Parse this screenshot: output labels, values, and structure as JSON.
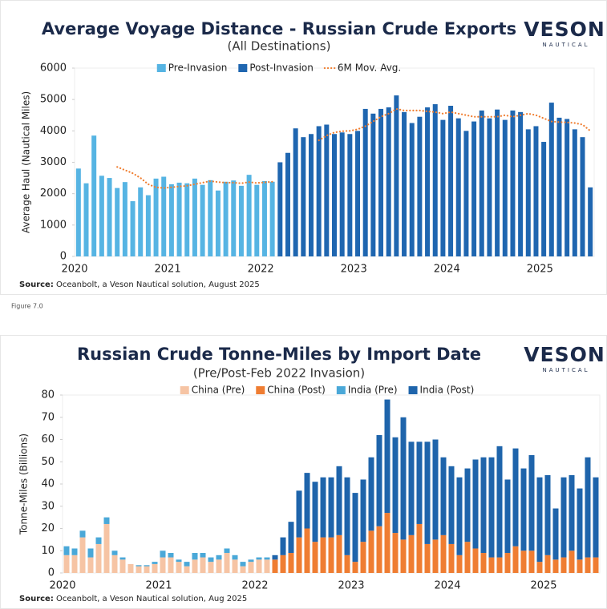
{
  "figure_caption": "Figure 7.0",
  "chart_data": [
    {
      "type": "bar",
      "title": "Average Voyage Distance - Russian Crude Exports",
      "subtitle": "(All Destinations)",
      "y_label": "Average Haul (Nautical Miles)",
      "logo": "VESON",
      "logo_sub": "NAUTICAL",
      "source_label": "Source:",
      "source": " Oceanbolt, a Veson Nautical solution, August 2025",
      "categories": [
        "2020",
        null,
        null,
        null,
        null,
        null,
        null,
        null,
        null,
        null,
        null,
        null,
        "2021",
        null,
        null,
        null,
        null,
        null,
        null,
        null,
        null,
        null,
        null,
        null,
        "2022",
        null,
        null,
        null,
        null,
        null,
        null,
        null,
        null,
        null,
        null,
        null,
        "2023",
        null,
        null,
        null,
        null,
        null,
        null,
        null,
        null,
        null,
        null,
        null,
        "2024",
        null,
        null,
        null,
        null,
        null,
        null,
        null,
        null,
        null,
        null,
        null,
        "2025",
        null,
        null,
        null,
        null,
        null,
        null
      ],
      "ylim": [
        0,
        6000
      ],
      "yticks": [
        0,
        1000,
        2000,
        3000,
        4000,
        5000,
        6000
      ],
      "grid": false,
      "series": [
        {
          "name": "Pre-Invasion",
          "color": "#56b4e3",
          "type": "bar",
          "values": [
            2800,
            2330,
            3850,
            2570,
            2500,
            2180,
            2370,
            1760,
            2200,
            1950,
            2480,
            2540,
            2300,
            2350,
            2330,
            2480,
            2280,
            2430,
            2100,
            2380,
            2420,
            2250,
            2600,
            2280,
            2400,
            2380,
            null,
            null,
            null,
            null,
            null,
            null,
            null,
            null,
            null,
            null,
            null,
            null,
            null,
            null,
            null,
            null,
            null,
            null,
            null,
            null,
            null,
            null,
            null,
            null,
            null,
            null,
            null,
            null,
            null,
            null,
            null,
            null,
            null,
            null,
            null,
            null,
            null,
            null,
            null,
            null,
            null
          ]
        },
        {
          "name": "Post-Invasion",
          "color": "#1f66b0",
          "type": "bar",
          "values": [
            null,
            null,
            null,
            null,
            null,
            null,
            null,
            null,
            null,
            null,
            null,
            null,
            null,
            null,
            null,
            null,
            null,
            null,
            null,
            null,
            null,
            null,
            null,
            null,
            null,
            null,
            3000,
            3300,
            4080,
            3800,
            3900,
            4150,
            4200,
            3900,
            3950,
            3900,
            4000,
            4700,
            4550,
            4700,
            4750,
            5130,
            4600,
            4250,
            4450,
            4750,
            4850,
            4350,
            4800,
            4400,
            4000,
            4300,
            4650,
            4400,
            4680,
            4350,
            4650,
            4600,
            4050,
            4150,
            3650,
            4900,
            4420,
            4380,
            4050,
            3800,
            2200
          ]
        },
        {
          "name": "6M Mov. Avg.",
          "color": "#f07f32",
          "type": "line",
          "values": [
            null,
            null,
            null,
            null,
            null,
            2850,
            2750,
            2650,
            2500,
            2300,
            2200,
            2180,
            2200,
            2230,
            2250,
            2300,
            2350,
            2400,
            2370,
            2350,
            2350,
            2330,
            2370,
            2340,
            2360,
            2380,
            null,
            null,
            null,
            null,
            null,
            3700,
            3850,
            3950,
            3990,
            4000,
            4050,
            4150,
            4300,
            4450,
            4550,
            4700,
            4650,
            4650,
            4650,
            4620,
            4600,
            4550,
            4600,
            4550,
            4500,
            4450,
            4450,
            4450,
            4450,
            4500,
            4450,
            4500,
            4550,
            4500,
            4400,
            4300,
            4280,
            4270,
            4250,
            4200,
            4000
          ]
        }
      ]
    },
    {
      "type": "stacked_bar",
      "title": "Russian Crude Tonne-Miles by Import Date",
      "subtitle": "(Pre/Post-Feb 2022 Invasion)",
      "y_label": "Tonne-Miles (Billions)",
      "logo": "VESON",
      "logo_sub": "NAUTICAL",
      "source_label": "Source:",
      "source": " Oceanbolt, a Veson Nautical solution, Aug 2025",
      "categories": [
        "2020",
        null,
        null,
        null,
        null,
        null,
        null,
        null,
        null,
        null,
        null,
        null,
        "2021",
        null,
        null,
        null,
        null,
        null,
        null,
        null,
        null,
        null,
        null,
        null,
        "2022",
        null,
        null,
        null,
        null,
        null,
        null,
        null,
        null,
        null,
        null,
        null,
        "2023",
        null,
        null,
        null,
        null,
        null,
        null,
        null,
        null,
        null,
        null,
        null,
        "2024",
        null,
        null,
        null,
        null,
        null,
        null,
        null,
        null,
        null,
        null,
        null,
        "2025",
        null,
        null,
        null,
        null,
        null,
        null
      ],
      "ylim": [
        0,
        80
      ],
      "yticks": [
        0,
        10,
        20,
        30,
        40,
        50,
        60,
        70,
        80
      ],
      "grid": false,
      "series": [
        {
          "name": "China (Pre)",
          "color": "#f6c4a4",
          "values": [
            8,
            8,
            16,
            7,
            13,
            22,
            8,
            6,
            4,
            3,
            3,
            4,
            7,
            7,
            5,
            3,
            6,
            7,
            5,
            6,
            9,
            6,
            3,
            5,
            6,
            6,
            null,
            null,
            null,
            null,
            null,
            null,
            null,
            null,
            null,
            null,
            null,
            null,
            null,
            null,
            null,
            null,
            null,
            null,
            null,
            null,
            null,
            null,
            null,
            null,
            null,
            null,
            null,
            null,
            null,
            null,
            null,
            null,
            null,
            null,
            null,
            null,
            null,
            null,
            null,
            null,
            null
          ]
        },
        {
          "name": "China (Post)",
          "color": "#ef7d32",
          "values": [
            null,
            null,
            null,
            null,
            null,
            null,
            null,
            null,
            null,
            null,
            null,
            null,
            null,
            null,
            null,
            null,
            null,
            null,
            null,
            null,
            null,
            null,
            null,
            null,
            null,
            null,
            6,
            8,
            9,
            16,
            20,
            14,
            16,
            16,
            17,
            8,
            5,
            14,
            19,
            21,
            27,
            18,
            15,
            17,
            22,
            13,
            15,
            17,
            13,
            8,
            14,
            11,
            9,
            7,
            7,
            9,
            12,
            10,
            10,
            5,
            8,
            6,
            7,
            10,
            6,
            7,
            7
          ]
        },
        {
          "name": "India (Pre)",
          "color": "#4aa8d8",
          "values": [
            4,
            3,
            3,
            4,
            3,
            3,
            2,
            1,
            0,
            0.5,
            0.5,
            1,
            3,
            2,
            1,
            2,
            3,
            2,
            2,
            2,
            2,
            2,
            2,
            1,
            1,
            1,
            null,
            null,
            null,
            null,
            null,
            null,
            null,
            null,
            null,
            null,
            null,
            null,
            null,
            null,
            null,
            null,
            null,
            null,
            null,
            null,
            null,
            null,
            null,
            null,
            null,
            null,
            null,
            null,
            null,
            null,
            null,
            null,
            null,
            null,
            null,
            null,
            null,
            null,
            null,
            null,
            null
          ]
        },
        {
          "name": "India (Post)",
          "color": "#1e64ab",
          "values": [
            null,
            null,
            null,
            null,
            null,
            null,
            null,
            null,
            null,
            null,
            null,
            null,
            null,
            null,
            null,
            null,
            null,
            null,
            null,
            null,
            null,
            null,
            null,
            null,
            null,
            null,
            2,
            8,
            14,
            21,
            25,
            27,
            27,
            27,
            31,
            35,
            31,
            28,
            33,
            41,
            51,
            43,
            55,
            42,
            37,
            46,
            45,
            35,
            35,
            35,
            33,
            40,
            43,
            45,
            50,
            33,
            44,
            37,
            43,
            38,
            36,
            23,
            36,
            34,
            32,
            45,
            36
          ]
        }
      ]
    }
  ]
}
